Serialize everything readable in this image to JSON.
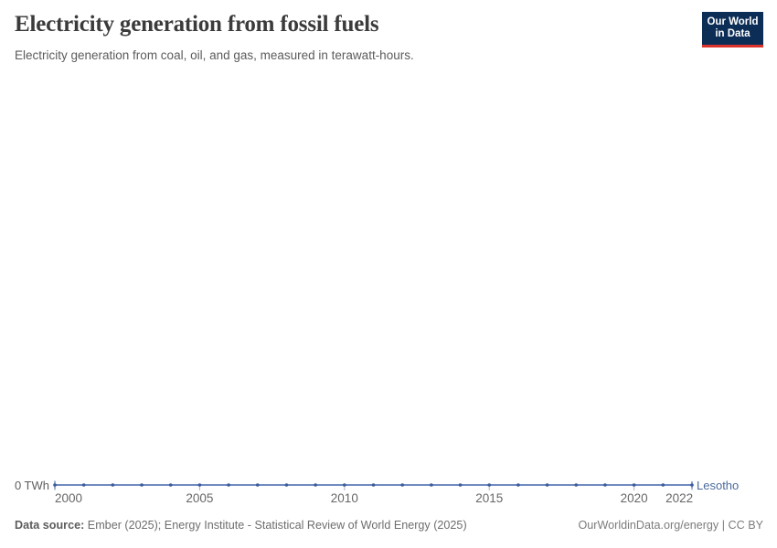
{
  "header": {
    "title": "Electricity generation from fossil fuels",
    "subtitle": "Electricity generation from coal, oil, and gas, measured in terawatt-hours.",
    "logo": {
      "line1": "Our World",
      "line2": "in Data",
      "bg_color": "#0c2d56",
      "accent_color": "#dc342c"
    }
  },
  "chart_data": {
    "type": "line",
    "title": "Electricity generation from fossil fuels",
    "subtitle": "Electricity generation from coal, oil, and gas, measured in terawatt-hours.",
    "xlabel": "",
    "ylabel": "TWh",
    "y_tick_label": "0 TWh",
    "x_ticks": [
      2000,
      2005,
      2010,
      2015,
      2020,
      2022
    ],
    "xlim": [
      2000,
      2022
    ],
    "ylim": [
      0,
      1
    ],
    "grid": false,
    "legend": "end-of-line entity label",
    "axis_tick_color": "#a8b4c8",
    "tick_label_color": "#666666",
    "series": [
      {
        "name": "Lesotho",
        "color": "#4c6a9c",
        "line_color": "#5b79b7",
        "marker_color": "#3d5c9e",
        "x": [
          2000,
          2001,
          2002,
          2003,
          2004,
          2005,
          2006,
          2007,
          2008,
          2009,
          2010,
          2011,
          2012,
          2013,
          2014,
          2015,
          2016,
          2017,
          2018,
          2019,
          2020,
          2021,
          2022
        ],
        "values": [
          0,
          0,
          0,
          0,
          0,
          0,
          0,
          0,
          0,
          0,
          0,
          0,
          0,
          0,
          0,
          0,
          0,
          0,
          0,
          0,
          0,
          0,
          0
        ]
      }
    ]
  },
  "footer": {
    "datasource_label": "Data source:",
    "datasource_text": " Ember (2025); Energy Institute - Statistical Review of World Energy (2025)",
    "link_text": "OurWorldinData.org/energy | CC BY"
  }
}
